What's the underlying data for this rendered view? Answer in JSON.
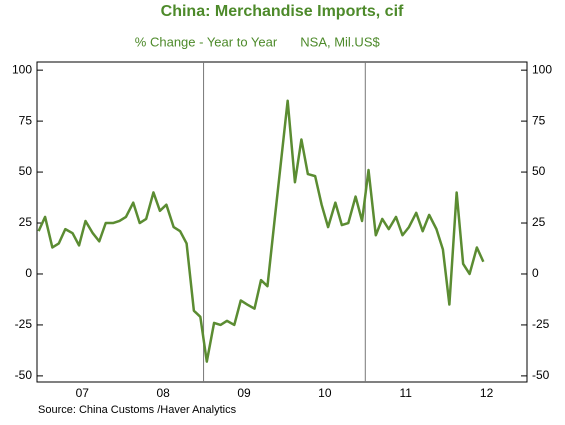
{
  "chart_data": {
    "type": "line",
    "title": "China: Merchandise Imports, cif",
    "subtitle": "% Change - Year to Year",
    "subtitle_note": "NSA, Mil.US$",
    "source": "Source:  China Customs /Haver Analytics",
    "x": [
      2006.96,
      2007.04,
      2007.13,
      2007.21,
      2007.29,
      2007.38,
      2007.46,
      2007.54,
      2007.63,
      2007.71,
      2007.79,
      2007.88,
      2007.96,
      2008.04,
      2008.13,
      2008.21,
      2008.29,
      2008.38,
      2008.46,
      2008.54,
      2008.63,
      2008.71,
      2008.79,
      2008.88,
      2008.96,
      2009.04,
      2009.13,
      2009.21,
      2009.29,
      2009.38,
      2009.46,
      2009.54,
      2009.63,
      2009.71,
      2009.79,
      2009.88,
      2009.96,
      2010.04,
      2010.13,
      2010.21,
      2010.29,
      2010.38,
      2010.46,
      2010.54,
      2010.63,
      2010.71,
      2010.79,
      2010.88,
      2010.96,
      2011.04,
      2011.13,
      2011.21,
      2011.29,
      2011.38,
      2011.46,
      2011.54,
      2011.63,
      2011.71,
      2011.79,
      2011.88,
      2011.96,
      2012.04,
      2012.13,
      2012.21,
      2012.29,
      2012.38,
      2012.46
    ],
    "series": [
      {
        "name": "Imports",
        "color": "#5b8c32",
        "values": [
          21,
          28,
          13,
          15,
          22,
          20,
          14,
          26,
          20,
          16,
          25,
          25,
          26,
          28,
          35,
          25,
          27,
          40,
          31,
          34,
          23,
          21,
          15,
          -18,
          -21,
          -43,
          -24,
          -25,
          -23,
          -25,
          -13,
          -15,
          -17,
          -3,
          -6,
          27,
          56,
          85,
          45,
          66,
          49,
          48,
          34,
          23,
          35,
          24,
          25,
          38,
          26,
          51,
          19,
          27,
          22,
          28,
          19,
          23,
          30,
          21,
          29,
          22,
          12,
          -15,
          40,
          5,
          0,
          13,
          6
        ]
      }
    ],
    "xlim": [
      2006.94,
      2013.0
    ],
    "xticks": [
      {
        "value": 2007.5,
        "label": "07"
      },
      {
        "value": 2008.5,
        "label": "08"
      },
      {
        "value": 2009.5,
        "label": "09"
      },
      {
        "value": 2010.5,
        "label": "10"
      },
      {
        "value": 2011.5,
        "label": "11"
      },
      {
        "value": 2012.5,
        "label": "12"
      }
    ],
    "vlines": [
      2009,
      2011
    ],
    "ylim": [
      -53,
      104
    ],
    "yticks": [
      -50,
      -25,
      0,
      25,
      50,
      75,
      100
    ]
  }
}
